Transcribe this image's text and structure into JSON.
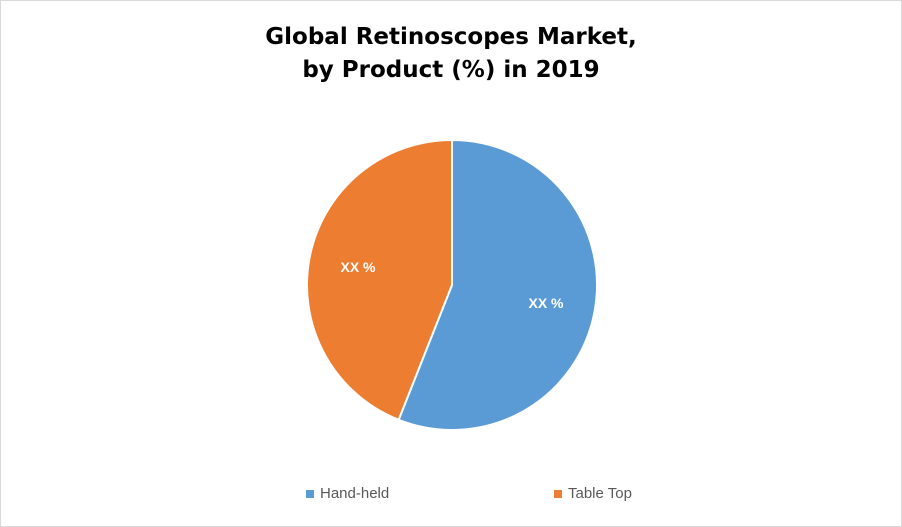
{
  "chart_data": {
    "type": "pie",
    "title": [
      "Global Retinoscopes Market,",
      "by Product (%) in 2019"
    ],
    "series": [
      {
        "name": "Hand-held",
        "value": 56,
        "color": "#5b9bd5",
        "data_label": "XX %"
      },
      {
        "name": "Table Top",
        "value": 44,
        "color": "#ed7d31",
        "data_label": "XX %"
      }
    ],
    "legend_position": "bottom",
    "data_label_color": "#ffffff"
  }
}
